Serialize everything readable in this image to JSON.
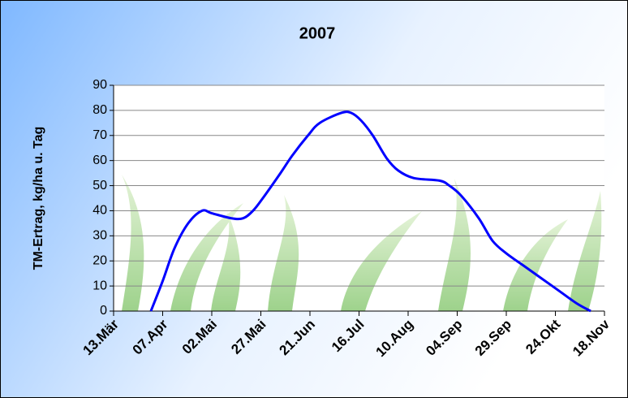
{
  "chart_data": {
    "type": "line",
    "title": "2007",
    "y_label": "TM-Ertrag, kg/ha u. Tag",
    "x": [
      91,
      97,
      103,
      110,
      117,
      122,
      132,
      138,
      143,
      148,
      157,
      163,
      171,
      177,
      188,
      193,
      198,
      204,
      211,
      217,
      225,
      238,
      243,
      249,
      258,
      265,
      272,
      281,
      290,
      299,
      308,
      315
    ],
    "series": [
      {
        "name": "2007",
        "color": "#0000ff",
        "values": [
          0,
          12,
          25,
          35,
          40,
          39,
          37,
          37,
          40,
          45,
          55,
          62,
          70,
          75,
          79,
          79,
          76,
          70,
          61,
          56,
          53,
          52,
          50,
          46,
          37,
          28,
          23,
          18,
          13,
          8,
          3,
          0
        ]
      }
    ],
    "xlim": [
      72,
      322
    ],
    "xticks": [
      {
        "value": 72,
        "label": "13.Mär"
      },
      {
        "value": 97,
        "label": "07.Apr"
      },
      {
        "value": 122,
        "label": "02.Mai"
      },
      {
        "value": 147,
        "label": "27.Mai"
      },
      {
        "value": 172,
        "label": "21.Jun"
      },
      {
        "value": 197,
        "label": "16.Jul"
      },
      {
        "value": 222,
        "label": "10.Aug"
      },
      {
        "value": 247,
        "label": "04.Sep"
      },
      {
        "value": 272,
        "label": "29.Sep"
      },
      {
        "value": 297,
        "label": "24.Okt"
      },
      {
        "value": 322,
        "label": "18.Nov"
      }
    ],
    "ylim": [
      0,
      90
    ],
    "yticks": [
      0,
      10,
      20,
      30,
      40,
      50,
      60,
      70,
      80,
      90
    ],
    "grid": true
  }
}
